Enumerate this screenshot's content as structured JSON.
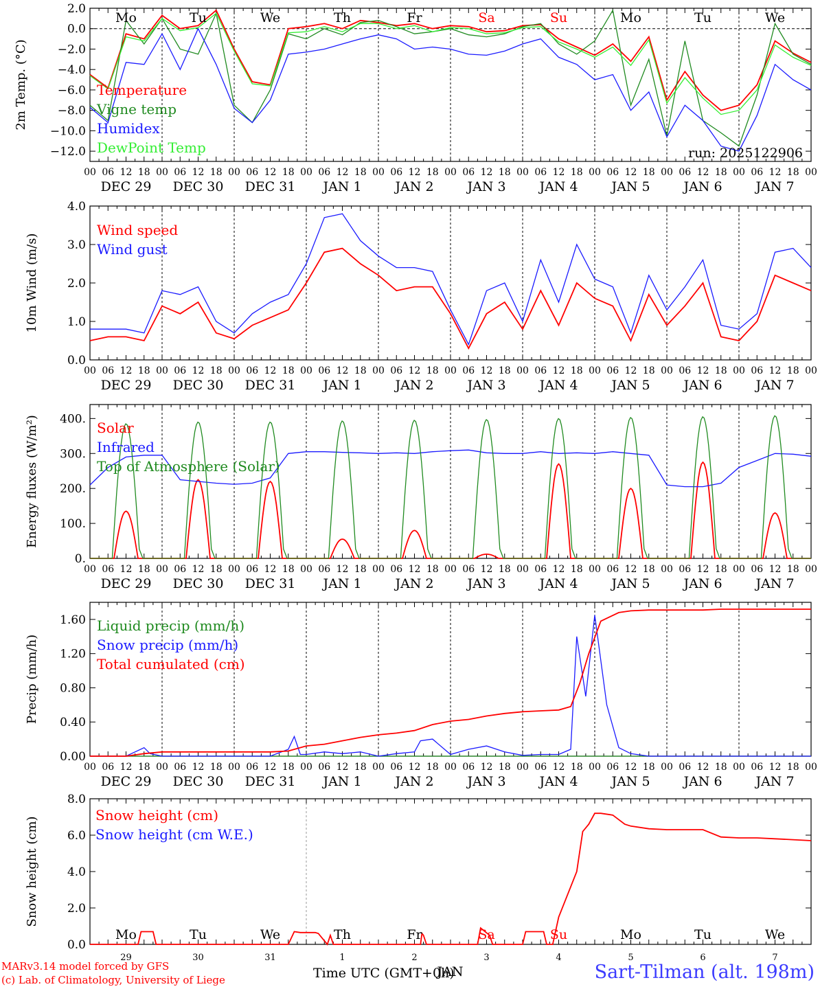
{
  "credits": {
    "line1": "MARv3.14 model forced by GFS",
    "line2": "(c) Lab. of Climatology, University of Liege"
  },
  "x_axis_label": "Time UTC (GMT+0h)",
  "station": "Sart-Tilman (alt. 198m)",
  "colors": {
    "red": "#ff0000",
    "blue": "#1a1aff",
    "green": "#1f8a1f",
    "lightgreen": "#33ee33"
  },
  "chart_data": [
    {
      "type": "line",
      "ylabel": "2m Temp. (°C)",
      "yticks": [
        "2.0",
        "0.0",
        "−2.0",
        "−4.0",
        "−6.0",
        "−8.0",
        "−10.0",
        "−12.0"
      ],
      "ylim": [
        -13,
        2
      ],
      "xlim_hours": [
        0,
        240
      ],
      "annotation": "run: 2025122906",
      "day_names": [
        "Mo",
        "Tu",
        "We",
        "Th",
        "Fr",
        "Sa",
        "Su",
        "Mo",
        "Tu",
        "We"
      ],
      "date_labels": [
        "DEC 29",
        "DEC 30",
        "DEC 31",
        "JAN  1",
        "JAN  2",
        "JAN  3",
        "JAN  4",
        "JAN  5",
        "JAN  6",
        "JAN  7"
      ],
      "hour_ticks": [
        "00",
        "06",
        "12",
        "18"
      ],
      "series": [
        {
          "name": "Temperature",
          "color": "red",
          "x": [
            0,
            6,
            12,
            18,
            24,
            30,
            36,
            42,
            48,
            54,
            60,
            66,
            72,
            78,
            84,
            90,
            96,
            102,
            108,
            114,
            120,
            126,
            132,
            138,
            144,
            150,
            156,
            162,
            168,
            174,
            180,
            186,
            192,
            198,
            204,
            210,
            216,
            222,
            228,
            234,
            240
          ],
          "y": [
            -4.5,
            -5.8,
            -0.5,
            -1.0,
            1.3,
            0.0,
            0.3,
            1.8,
            -2.0,
            -5.2,
            -5.5,
            0.0,
            0.2,
            0.5,
            0.0,
            0.8,
            0.6,
            0.3,
            0.5,
            0.0,
            0.3,
            0.2,
            -0.3,
            -0.2,
            0.3,
            0.4,
            -1.0,
            -1.8,
            -2.6,
            -1.5,
            -3.2,
            -0.8,
            -7.0,
            -4.2,
            -6.5,
            -8.0,
            -7.5,
            -5.5,
            -1.2,
            -2.4,
            -3.3
          ]
        },
        {
          "name": "Vigne temp",
          "color": "green",
          "x": [
            0,
            6,
            12,
            18,
            24,
            30,
            36,
            42,
            48,
            54,
            60,
            66,
            72,
            78,
            84,
            90,
            96,
            102,
            108,
            114,
            120,
            126,
            132,
            138,
            144,
            150,
            156,
            162,
            168,
            174,
            180,
            186,
            192,
            198,
            204,
            210,
            216,
            222,
            228,
            234,
            240
          ],
          "y": [
            -7.5,
            -9.0,
            0.8,
            -1.5,
            1.0,
            -2.0,
            -2.5,
            1.5,
            -7.5,
            -9.2,
            -6.0,
            -0.5,
            -1.0,
            0.0,
            -0.6,
            0.6,
            0.8,
            0.2,
            -0.5,
            -0.3,
            0.0,
            -0.6,
            -0.8,
            -0.5,
            0.2,
            0.5,
            -1.5,
            -2.5,
            -1.2,
            1.8,
            -7.5,
            -3.0,
            -10.5,
            -1.2,
            -9.0,
            -10.2,
            -11.5,
            -6.5,
            0.5,
            -2.5,
            -3.5
          ]
        },
        {
          "name": "Humidex",
          "color": "blue",
          "x": [
            0,
            6,
            12,
            18,
            24,
            30,
            36,
            42,
            48,
            54,
            60,
            66,
            72,
            78,
            84,
            90,
            96,
            102,
            108,
            114,
            120,
            126,
            132,
            138,
            144,
            150,
            156,
            162,
            168,
            174,
            180,
            186,
            192,
            198,
            204,
            210,
            216,
            222,
            228,
            234,
            240
          ],
          "y": [
            -7.7,
            -9.2,
            -3.3,
            -3.5,
            -0.5,
            -4.0,
            0.0,
            -3.5,
            -7.8,
            -9.2,
            -7.0,
            -2.5,
            -2.3,
            -2.0,
            -1.5,
            -1.0,
            -0.6,
            -1.0,
            -2.0,
            -1.8,
            -2.0,
            -2.5,
            -2.6,
            -2.2,
            -1.5,
            -1.0,
            -2.8,
            -3.5,
            -5.0,
            -4.5,
            -8.0,
            -6.2,
            -10.6,
            -7.5,
            -9.0,
            -11.5,
            -12.0,
            -8.5,
            -3.5,
            -5.0,
            -6.0
          ]
        },
        {
          "name": "DewPoint Temp",
          "color": "lightgreen",
          "x": [
            0,
            6,
            12,
            18,
            24,
            30,
            36,
            42,
            48,
            54,
            60,
            66,
            72,
            78,
            84,
            90,
            96,
            102,
            108,
            114,
            120,
            126,
            132,
            138,
            144,
            150,
            156,
            162,
            168,
            174,
            180,
            186,
            192,
            198,
            204,
            210,
            216,
            222,
            228,
            234,
            240
          ],
          "y": [
            -4.6,
            -5.9,
            -0.8,
            -1.2,
            1.0,
            -0.2,
            0.1,
            1.5,
            -2.2,
            -5.4,
            -5.6,
            -0.4,
            -0.3,
            0.2,
            -0.3,
            0.5,
            0.5,
            0.0,
            0.3,
            -0.3,
            0.1,
            0.0,
            -0.5,
            -0.4,
            0.1,
            0.2,
            -1.3,
            -2.0,
            -2.8,
            -1.8,
            -3.6,
            -1.1,
            -7.3,
            -4.8,
            -6.8,
            -8.4,
            -8.0,
            -6.0,
            -1.6,
            -2.8,
            -3.6
          ]
        }
      ]
    },
    {
      "type": "line",
      "ylabel": "10m Wind (m/s)",
      "yticks": [
        "4.0",
        "3.0",
        "2.0",
        "1.0",
        "0.0"
      ],
      "ylim": [
        0,
        4
      ],
      "xlim_hours": [
        0,
        240
      ],
      "series": [
        {
          "name": "Wind speed",
          "color": "red",
          "x": [
            0,
            6,
            12,
            18,
            24,
            30,
            36,
            42,
            48,
            54,
            60,
            66,
            72,
            78,
            84,
            90,
            96,
            102,
            108,
            114,
            120,
            126,
            132,
            138,
            144,
            150,
            156,
            162,
            168,
            174,
            180,
            186,
            192,
            198,
            204,
            210,
            216,
            222,
            228,
            234,
            240
          ],
          "y": [
            0.5,
            0.6,
            0.6,
            0.5,
            1.4,
            1.2,
            1.5,
            0.7,
            0.55,
            0.9,
            1.1,
            1.3,
            2.0,
            2.8,
            2.9,
            2.5,
            2.2,
            1.8,
            1.9,
            1.9,
            1.2,
            0.3,
            1.2,
            1.5,
            0.8,
            1.8,
            0.9,
            2.0,
            1.6,
            1.4,
            0.5,
            1.7,
            0.9,
            1.4,
            2.0,
            0.6,
            0.5,
            1.0,
            2.2,
            2.0,
            1.8
          ]
        },
        {
          "name": "Wind gust",
          "color": "blue",
          "x": [
            0,
            6,
            12,
            18,
            24,
            30,
            36,
            42,
            48,
            54,
            60,
            66,
            72,
            78,
            84,
            90,
            96,
            102,
            108,
            114,
            120,
            126,
            132,
            138,
            144,
            150,
            156,
            162,
            168,
            174,
            180,
            186,
            192,
            198,
            204,
            210,
            216,
            222,
            228,
            234,
            240
          ],
          "y": [
            0.8,
            0.8,
            0.8,
            0.7,
            1.8,
            1.7,
            1.9,
            1.0,
            0.7,
            1.2,
            1.5,
            1.7,
            2.5,
            3.7,
            3.8,
            3.1,
            2.7,
            2.4,
            2.4,
            2.3,
            1.3,
            0.4,
            1.8,
            2.0,
            1.0,
            2.6,
            1.5,
            3.0,
            2.1,
            1.9,
            0.7,
            2.2,
            1.3,
            1.9,
            2.6,
            0.9,
            0.8,
            1.2,
            2.8,
            2.9,
            2.4
          ]
        }
      ]
    },
    {
      "type": "line",
      "ylabel": "Energy fluxes (W/m²)",
      "yticks": [
        "400.",
        "300.",
        "200.",
        "100.",
        "0."
      ],
      "ylim": [
        0,
        440
      ],
      "xlim_hours": [
        0,
        240
      ],
      "series": [
        {
          "name": "Solar",
          "color": "red",
          "peaks": [
            135,
            225,
            220,
            55,
            80,
            12,
            270,
            200,
            275,
            130
          ],
          "peak_hour": 12
        },
        {
          "name": "Infrared",
          "color": "blue",
          "x": [
            0,
            6,
            12,
            18,
            24,
            30,
            36,
            42,
            48,
            54,
            60,
            66,
            72,
            78,
            84,
            90,
            96,
            102,
            108,
            114,
            120,
            126,
            132,
            138,
            144,
            150,
            156,
            162,
            168,
            174,
            180,
            186,
            192,
            198,
            204,
            210,
            216,
            222,
            228,
            234,
            240
          ],
          "y": [
            210,
            260,
            290,
            295,
            295,
            225,
            220,
            215,
            212,
            215,
            230,
            300,
            305,
            305,
            303,
            302,
            300,
            302,
            300,
            305,
            308,
            310,
            302,
            300,
            300,
            305,
            300,
            302,
            300,
            305,
            300,
            295,
            210,
            205,
            205,
            215,
            260,
            280,
            300,
            298,
            292
          ]
        },
        {
          "name": "Top of Atmosphere (Solar)",
          "color": "green",
          "peaks": [
            385,
            390,
            390,
            393,
            395,
            397,
            400,
            403,
            405,
            408
          ],
          "peak_hour": 12
        }
      ]
    },
    {
      "type": "line",
      "ylabel": "Precip (mm/h)",
      "yticks": [
        "1.60",
        "1.20",
        "0.80",
        "0.40",
        "0.00"
      ],
      "ylim": [
        0,
        1.8
      ],
      "xlim_hours": [
        0,
        240
      ],
      "series": [
        {
          "name": "Liquid precip (mm/h)",
          "color": "green",
          "x": [
            0,
            240
          ],
          "y": [
            0,
            0
          ]
        },
        {
          "name": "Snow precip (mm/h)",
          "color": "blue",
          "x": [
            0,
            12,
            18,
            20,
            24,
            30,
            36,
            42,
            48,
            54,
            60,
            66,
            68,
            70,
            72,
            78,
            84,
            90,
            96,
            102,
            108,
            110,
            114,
            120,
            126,
            132,
            138,
            144,
            150,
            156,
            160,
            162,
            165,
            168,
            172,
            176,
            180,
            186,
            192,
            198,
            204,
            210,
            216,
            222,
            228,
            234,
            240
          ],
          "y": [
            0,
            0,
            0.1,
            0.03,
            0,
            0,
            0,
            0,
            0,
            0,
            0,
            0.08,
            0.23,
            0.02,
            0.02,
            0.05,
            0.03,
            0.05,
            0.0,
            0.03,
            0.05,
            0.18,
            0.2,
            0.02,
            0.08,
            0.12,
            0.05,
            0.01,
            0.02,
            0.02,
            0.08,
            1.4,
            0.7,
            1.65,
            0.6,
            0.1,
            0.03,
            0,
            0,
            0,
            0,
            0,
            0,
            0,
            0,
            0,
            0
          ]
        },
        {
          "name": "Total cumulated (cm)",
          "color": "red",
          "x": [
            0,
            12,
            18,
            24,
            30,
            36,
            42,
            48,
            54,
            60,
            66,
            72,
            78,
            84,
            90,
            96,
            102,
            108,
            114,
            120,
            126,
            132,
            138,
            144,
            150,
            156,
            160,
            163,
            166,
            170,
            176,
            180,
            186,
            192,
            198,
            204,
            210,
            216,
            222,
            228,
            234,
            240
          ],
          "y": [
            0,
            0,
            0.03,
            0.05,
            0.05,
            0.05,
            0.05,
            0.05,
            0.05,
            0.05,
            0.06,
            0.12,
            0.14,
            0.18,
            0.22,
            0.25,
            0.27,
            0.3,
            0.37,
            0.41,
            0.43,
            0.47,
            0.5,
            0.52,
            0.53,
            0.54,
            0.58,
            0.85,
            1.2,
            1.58,
            1.68,
            1.7,
            1.71,
            1.71,
            1.71,
            1.71,
            1.72,
            1.72,
            1.72,
            1.72,
            1.72,
            1.72
          ]
        }
      ]
    },
    {
      "type": "line",
      "ylabel": "Snow height (cm)",
      "yticks": [
        "8.0",
        "6.0",
        "4.0",
        "2.0",
        "0.0"
      ],
      "ylim": [
        0,
        8
      ],
      "xlim_hours": [
        0,
        240
      ],
      "day_names": [
        "Mo",
        "Tu",
        "We",
        "Th",
        "Fr",
        "Sa",
        "Su",
        "Mo",
        "Tu",
        "We"
      ],
      "day_numbers": [
        "29",
        "30",
        "31",
        "1",
        "2",
        "3",
        "4",
        "5",
        "6",
        "7"
      ],
      "month_label": "JAN",
      "series": [
        {
          "name": "Snow height (cm)",
          "color": "red",
          "x": [
            0,
            16,
            17,
            20,
            21,
            22,
            66,
            68,
            70,
            75,
            76,
            79,
            80,
            81,
            110,
            110.5,
            111,
            112,
            129,
            130,
            133,
            134,
            138,
            144,
            145,
            146,
            151,
            152,
            154,
            156,
            162,
            164,
            166,
            168,
            170,
            174,
            178,
            180,
            186,
            192,
            198,
            204,
            210,
            216,
            222,
            228,
            234,
            240
          ],
          "y": [
            0,
            0,
            0.7,
            0.7,
            0.7,
            0,
            0,
            0.7,
            0.65,
            0.65,
            0.6,
            0,
            0.5,
            0,
            0,
            0.6,
            0.5,
            0,
            0,
            0.9,
            0.5,
            0,
            0,
            0,
            0.7,
            0.7,
            0.7,
            0,
            0,
            1.5,
            4,
            6.2,
            6.6,
            7.2,
            7.2,
            7.1,
            6.6,
            6.5,
            6.35,
            6.3,
            6.3,
            6.3,
            5.9,
            5.85,
            5.85,
            5.8,
            5.75,
            5.7
          ]
        },
        {
          "name": "Snow height (cm W.E.)",
          "color": "blue",
          "x": [],
          "y": []
        }
      ]
    }
  ]
}
